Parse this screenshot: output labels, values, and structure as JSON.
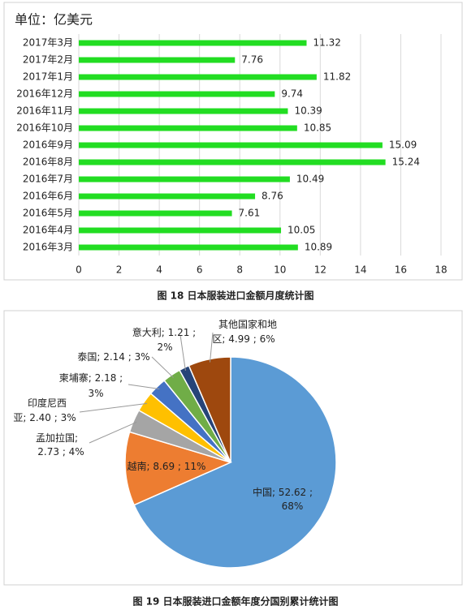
{
  "chart_data": [
    {
      "type": "bar",
      "orientation": "horizontal",
      "subtitle": "单位：亿美元",
      "categories": [
        "2017年3月",
        "2017年2月",
        "2017年1月",
        "2016年12月",
        "2016年11月",
        "2016年10月",
        "2016年9月",
        "2016年8月",
        "2016年7月",
        "2016年6月",
        "2016年5月",
        "2016年4月",
        "2016年3月"
      ],
      "values": [
        11.32,
        7.76,
        11.82,
        9.74,
        10.39,
        10.85,
        15.09,
        15.24,
        10.49,
        8.76,
        7.61,
        10.05,
        10.89
      ],
      "color": "#22dd22",
      "xlim": [
        0,
        18
      ],
      "xticks": [
        0,
        2,
        4,
        6,
        8,
        10,
        12,
        14,
        16,
        18
      ],
      "grid": true,
      "caption": "图 18 日本服装进口金额月度统计图"
    },
    {
      "type": "pie",
      "categories": [
        "中国",
        "越南",
        "孟加拉国",
        "印度尼西亚",
        "柬埔寨",
        "泰国",
        "意大利",
        "其他国家和地区"
      ],
      "values": [
        52.62,
        8.69,
        2.73,
        2.4,
        2.18,
        2.14,
        1.21,
        4.99
      ],
      "value_labels": [
        "中国; 52.62 ;\n68%",
        "越南; 8.69 ; 11%",
        "孟加拉国;\n2.73 ; 4%",
        "印度尼西\n亚; 2.40 ; 3%",
        "柬埔寨; 2.18 ;\n3%",
        "泰国; 2.14 ; 3%",
        "意大利; 1.21 ;\n2%",
        "其他国家和地\n区; 4.99 ; 6%"
      ],
      "colors": [
        "#5b9bd5",
        "#ed7d31",
        "#a5a5a5",
        "#ffc000",
        "#4472c4",
        "#70ad47",
        "#264478",
        "#9e480e"
      ],
      "caption": "图 19 日本服装进口金额年度分国别累计统计图"
    }
  ]
}
